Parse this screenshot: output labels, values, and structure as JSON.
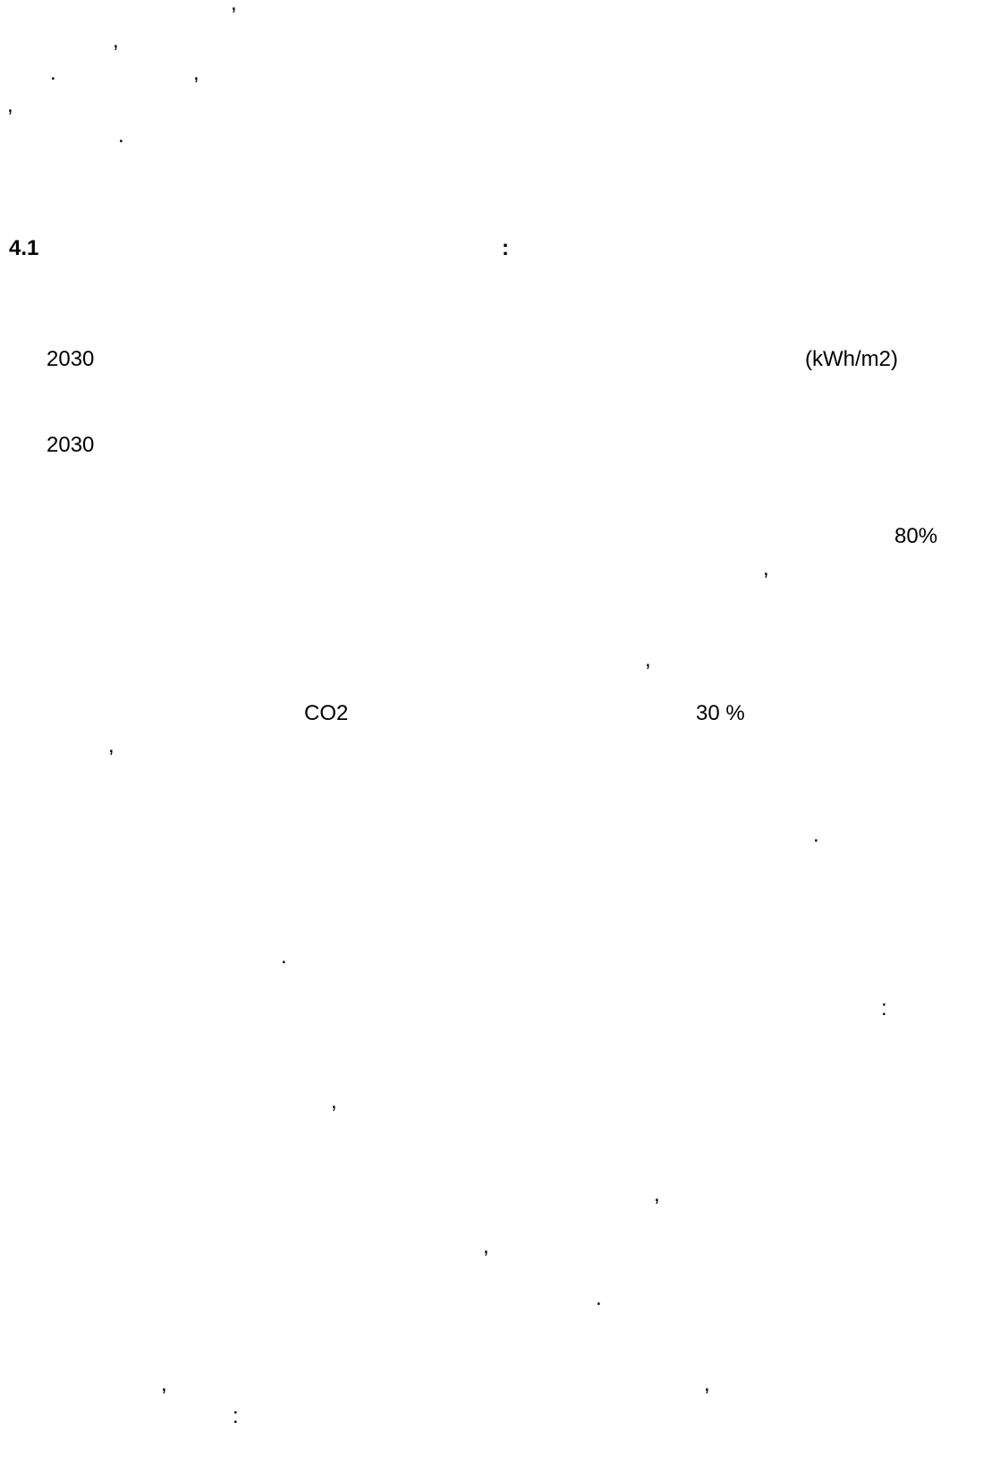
{
  "document": {
    "fragments": [
      {
        "id": "p1-l1-comma",
        "text": ","
      },
      {
        "id": "p1-l2-comma",
        "text": ","
      },
      {
        "id": "p1-l3-period",
        "text": "."
      },
      {
        "id": "p1-l3-comma",
        "text": ","
      },
      {
        "id": "p1-l4-comma",
        "text": ","
      },
      {
        "id": "p1-l5-period",
        "text": "."
      },
      {
        "id": "heading-number",
        "text": "4.1"
      },
      {
        "id": "heading-colon",
        "text": ":"
      },
      {
        "id": "year-1",
        "text": "2030"
      },
      {
        "id": "unit-kwh",
        "text": "(kWh/m2)"
      },
      {
        "id": "year-2",
        "text": "2030"
      },
      {
        "id": "percent-80",
        "text": "80%"
      },
      {
        "id": "l-comma-a",
        "text": ","
      },
      {
        "id": "l-comma-b",
        "text": ","
      },
      {
        "id": "co2",
        "text": "CO2"
      },
      {
        "id": "percent-30",
        "text": "30 %"
      },
      {
        "id": "l-comma-c",
        "text": ","
      },
      {
        "id": "l-period-a",
        "text": "."
      },
      {
        "id": "l-period-b",
        "text": "."
      },
      {
        "id": "l-colon-a",
        "text": ":"
      },
      {
        "id": "l-comma-d",
        "text": ","
      },
      {
        "id": "l-comma-e",
        "text": ","
      },
      {
        "id": "l-comma-f",
        "text": ","
      },
      {
        "id": "l-period-c",
        "text": "."
      },
      {
        "id": "l-comma-g",
        "text": ","
      },
      {
        "id": "l-comma-h",
        "text": ","
      },
      {
        "id": "l-colon-b",
        "text": ":"
      }
    ]
  }
}
